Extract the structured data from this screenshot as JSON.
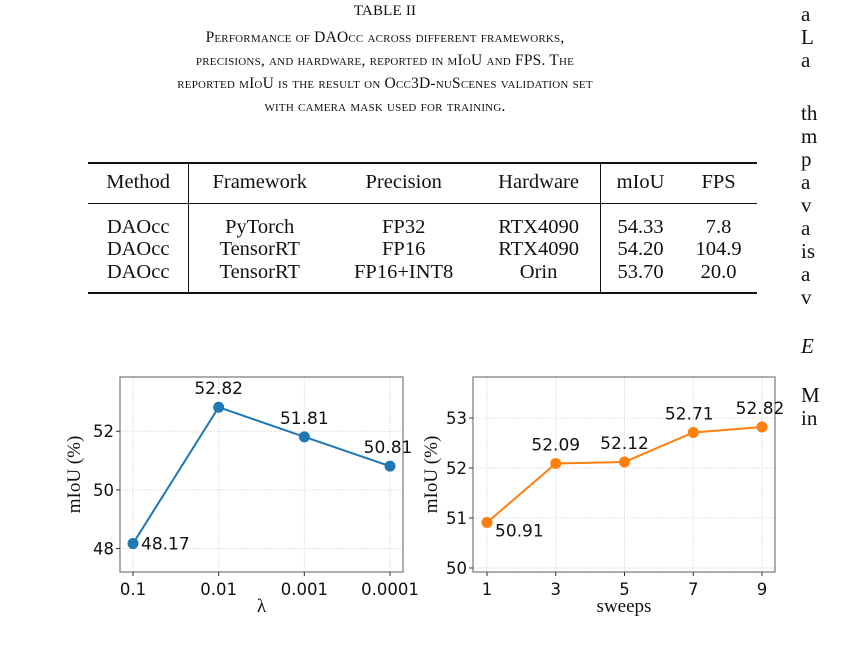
{
  "caption": {
    "label": "TABLE II",
    "lines": [
      "Performance of DAOcc across different frameworks,",
      "precisions, and hardware, reported in mIoU and FPS. The",
      "reported mIoU is the result on Occ3D-nuScenes validation set",
      "with camera mask used for training."
    ]
  },
  "table": {
    "headers": [
      "Method",
      "Framework",
      "Precision",
      "Hardware",
      "mIoU",
      "FPS"
    ],
    "rows": [
      [
        "DAOcc",
        "PyTorch",
        "FP32",
        "RTX4090",
        "54.33",
        "7.8"
      ],
      [
        "DAOcc",
        "TensorRT",
        "FP16",
        "RTX4090",
        "54.20",
        "104.9"
      ],
      [
        "DAOcc",
        "TensorRT",
        "FP16+INT8",
        "Orin",
        "53.70",
        "20.0"
      ]
    ]
  },
  "right_column_fragments": [
    "a",
    "L",
    "a",
    "th",
    "m",
    "p",
    "a",
    "v",
    "a",
    "is",
    "a",
    "v",
    "E",
    "M",
    "in"
  ],
  "chart_data": [
    {
      "type": "line",
      "categories": [
        "0.1",
        "0.01",
        "0.001",
        "0.0001"
      ],
      "values": [
        48.17,
        52.82,
        51.81,
        50.81
      ],
      "data_labels": [
        "48.17",
        "52.82",
        "51.81",
        "50.81"
      ],
      "xlabel": "λ",
      "ylabel": "mIoU (%)",
      "yticks": [
        48,
        50,
        52
      ],
      "ylim": [
        47.2,
        53.85
      ],
      "grid": true,
      "color": "#1f77b4"
    },
    {
      "type": "line",
      "categories": [
        "1",
        "3",
        "5",
        "7",
        "9"
      ],
      "values": [
        50.91,
        52.09,
        52.12,
        52.71,
        52.82
      ],
      "data_labels": [
        "50.91",
        "52.09",
        "52.12",
        "52.71",
        "52.82"
      ],
      "xlabel": "sweeps",
      "ylabel": "mIoU (%)",
      "yticks": [
        50,
        51,
        52,
        53
      ],
      "ylim": [
        49.92,
        53.82
      ],
      "grid": true,
      "color": "#ff7f0e"
    }
  ]
}
